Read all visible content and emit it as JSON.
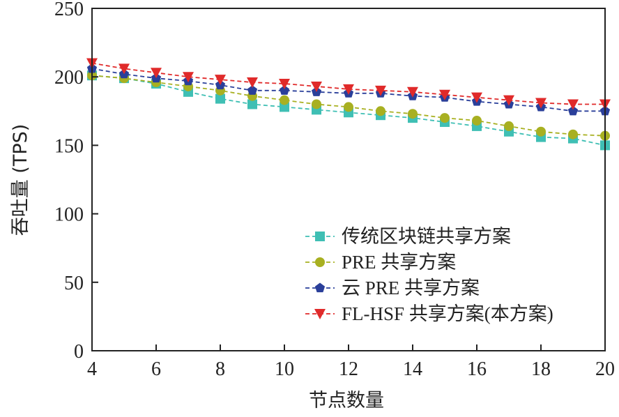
{
  "chart_data": {
    "type": "line",
    "xlabel": "节点数量",
    "ylabel": "吞吐量 (TPS)",
    "xlim": [
      4,
      20
    ],
    "ylim": [
      0,
      250
    ],
    "xticks": [
      4,
      6,
      8,
      10,
      12,
      14,
      16,
      18,
      20
    ],
    "yticks": [
      0,
      50,
      100,
      150,
      200,
      250
    ],
    "grid": false,
    "legend_position": "lower-right",
    "x": [
      4,
      5,
      6,
      7,
      8,
      9,
      10,
      11,
      12,
      13,
      14,
      15,
      16,
      17,
      18,
      19,
      20
    ],
    "series": [
      {
        "name": "传统区块链共享方案",
        "color": "#3fbfb4",
        "marker": "square",
        "values": [
          201,
          199,
          195,
          189,
          184,
          180,
          178,
          176,
          174,
          172,
          170,
          167,
          164,
          160,
          156,
          155,
          150
        ]
      },
      {
        "name": "PRE 共享方案",
        "color": "#a8b021",
        "marker": "circle",
        "values": [
          201,
          199,
          196,
          193,
          190,
          186,
          183,
          180,
          178,
          175,
          173,
          170,
          168,
          164,
          160,
          158,
          157
        ]
      },
      {
        "name": "云 PRE 共享方案",
        "color": "#2a3f9a",
        "marker": "pentagon",
        "values": [
          206,
          202,
          199,
          197,
          194,
          190,
          190,
          189,
          188,
          188,
          186,
          185,
          182,
          180,
          178,
          175,
          175
        ]
      },
      {
        "name": "FL-HSF 共享方案(本方案)",
        "color": "#e02a2a",
        "marker": "triangle-down",
        "values": [
          210,
          206,
          203,
          200,
          198,
          196,
          195,
          193,
          191,
          190,
          189,
          187,
          185,
          183,
          181,
          180,
          180
        ]
      }
    ]
  }
}
